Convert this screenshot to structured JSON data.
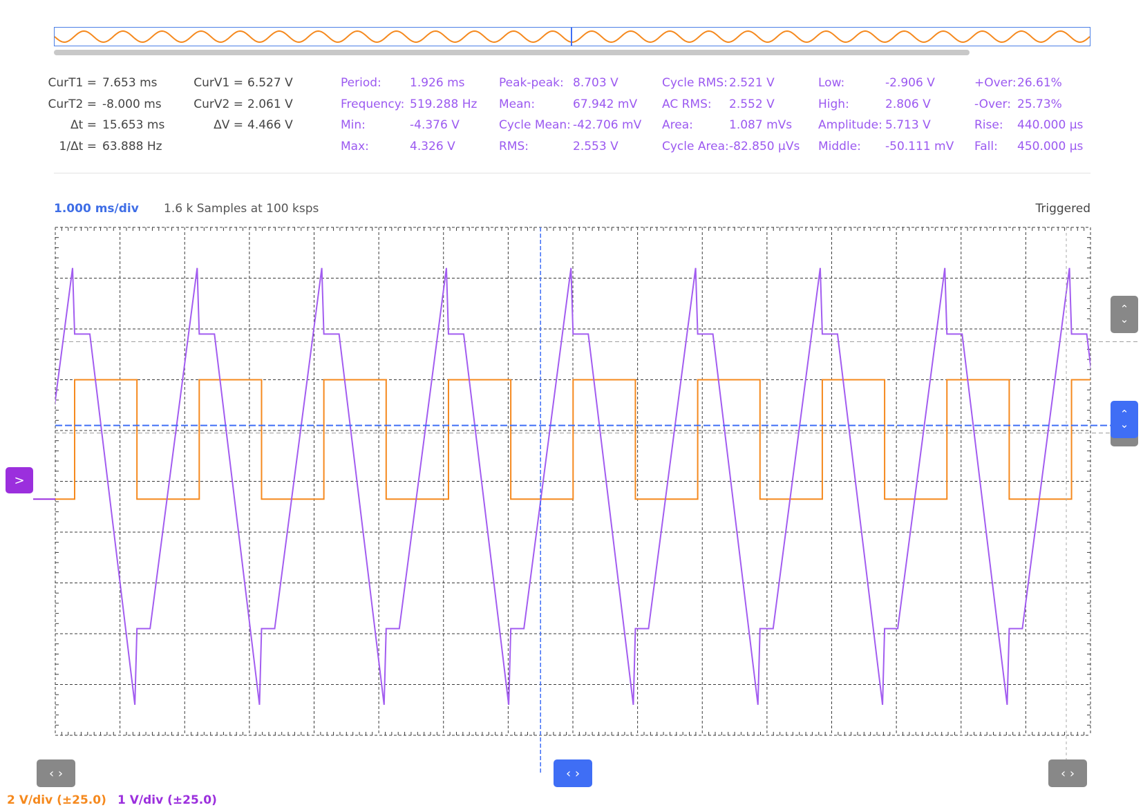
{
  "cursors": {
    "t1": {
      "label": "CurT1 =",
      "value": "7.653 ms"
    },
    "t2": {
      "label": "CurT2 =",
      "value": "-8.000 ms"
    },
    "dt": {
      "label": "Δt =",
      "value": "15.653 ms"
    },
    "inv_dt": {
      "label": "1/Δt =",
      "value": "63.888 Hz"
    },
    "v1": {
      "label": "CurV1 =",
      "value": "6.527 V"
    },
    "v2": {
      "label": "CurV2 =",
      "value": "2.061 V"
    },
    "dv": {
      "label": "ΔV =",
      "value": "4.466 V"
    }
  },
  "measurements": [
    [
      {
        "label": "Period:",
        "value": "1.926 ms"
      },
      {
        "label": "Frequency:",
        "value": "519.288 Hz"
      },
      {
        "label": "Min:",
        "value": "-4.376 V"
      },
      {
        "label": "Max:",
        "value": "4.326 V"
      }
    ],
    [
      {
        "label": "Peak-peak:",
        "value": "8.703 V"
      },
      {
        "label": "Mean:",
        "value": "67.942 mV"
      },
      {
        "label": "Cycle Mean:",
        "value": "-42.706 mV"
      },
      {
        "label": "RMS:",
        "value": "2.553 V"
      }
    ],
    [
      {
        "label": "Cycle RMS:",
        "value": "2.521 V"
      },
      {
        "label": "AC RMS:",
        "value": "2.552 V"
      },
      {
        "label": "Area:",
        "value": "1.087 mVs"
      },
      {
        "label": "Cycle Area:",
        "value": "-82.850 μVs"
      }
    ],
    [
      {
        "label": "Low:",
        "value": "-2.906 V"
      },
      {
        "label": "High:",
        "value": "2.806 V"
      },
      {
        "label": "Amplitude:",
        "value": "5.713 V"
      },
      {
        "label": "Middle:",
        "value": "-50.111 mV"
      }
    ],
    [
      {
        "label": "+Over:",
        "value": "26.61%"
      },
      {
        "label": "-Over:",
        "value": "25.73%"
      },
      {
        "label": "Rise:",
        "value": "440.000 μs"
      },
      {
        "label": "Fall:",
        "value": "450.000 μs"
      }
    ]
  ],
  "scope": {
    "timebase": "1.000 ms/div",
    "samples": "1.6 k Samples at 100 ksps",
    "status": "Triggered"
  },
  "channels": [
    {
      "scale_label": "2 V/div (±25.0)",
      "color": "#f5891e"
    },
    {
      "scale_label": "1 V/div (±25.0)",
      "color": "#9b2fdd"
    }
  ],
  "colors": {
    "grid": "#3a3a3a",
    "trigger": "#3f6ef5",
    "ch_orange": "#f5891e",
    "ch_purple": "#a25cf0",
    "ref_dashed": "#999999"
  },
  "chart_data": {
    "type": "line",
    "x_divisions": 16,
    "y_divisions": 10,
    "period_divisions": 1.926,
    "series": [
      {
        "shape": "square",
        "color": "#f5891e",
        "high_div": 7.0,
        "low_div": 4.65,
        "duty": 0.5
      },
      {
        "shape": "triangle",
        "color": "#a25cf0",
        "peak_div": 9.2,
        "trough_div": 0.6
      }
    ]
  },
  "icons": {
    "left_arrows": "‹ ›",
    "up_down": "⌃⌄",
    "channel_marker": ">"
  }
}
